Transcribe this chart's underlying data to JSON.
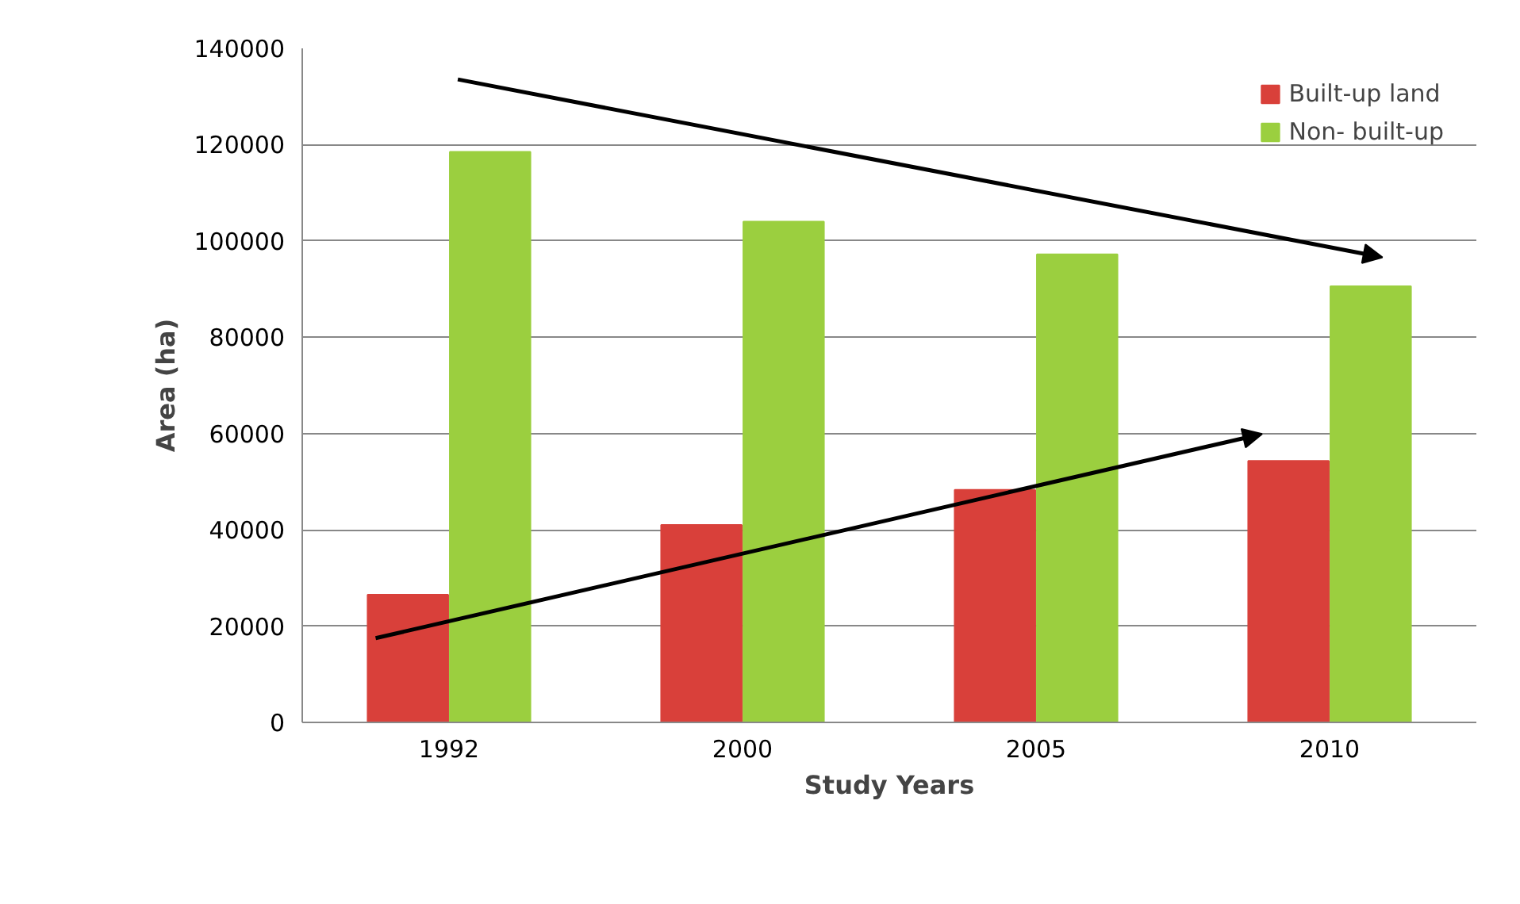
{
  "chart_data": {
    "type": "bar",
    "xlabel": "Study Years",
    "ylabel": "Area (ha)",
    "categories": [
      "1992",
      "2000",
      "2005",
      "2010"
    ],
    "series": [
      {
        "name": "Built-up land",
        "color": "#d9403a",
        "values": [
          26500,
          41000,
          48300,
          54300
        ]
      },
      {
        "name": "Non- built-up",
        "color": "#9bcf3f",
        "values": [
          118500,
          104000,
          97200,
          90600
        ]
      }
    ],
    "ylim": [
      0,
      140000
    ],
    "yticks": [
      0,
      20000,
      40000,
      60000,
      80000,
      100000,
      120000,
      140000
    ],
    "grid": "y",
    "legend": "top right"
  }
}
